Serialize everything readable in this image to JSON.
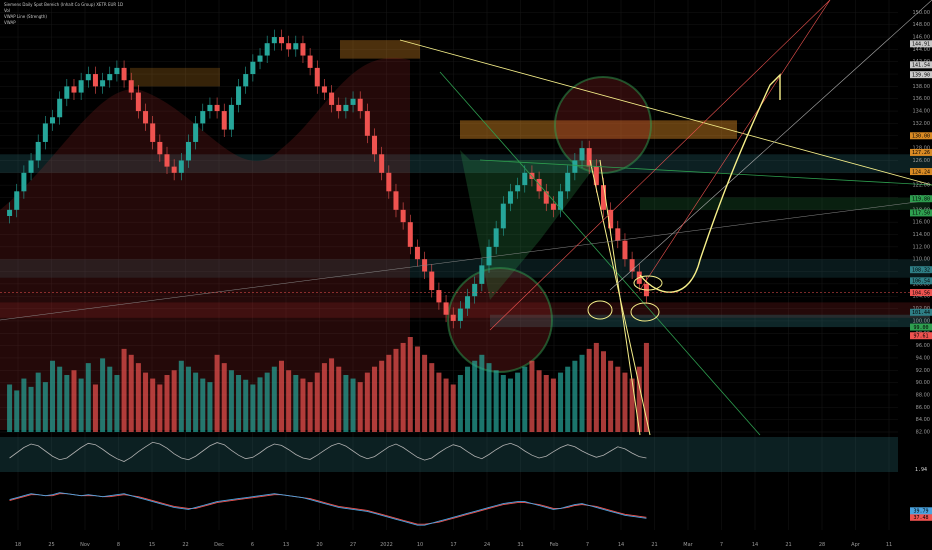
{
  "header": {
    "symbol_line": "Siemens Daily Spot Bereich (Inhalt Co Group)  XETR  EUR  1D",
    "indicator_lines": [
      "Vol",
      "VWAP Line (Strength)",
      "VWAP"
    ]
  },
  "colors": {
    "up": "#26a69a",
    "down": "#ef5350",
    "grid": "#161616",
    "yellow_line": "#f7f08a",
    "zone_orange": "#d98a24",
    "zone_teal": "#2f7f86",
    "zone_green": "#2e9e4f",
    "zone_red": "#b22b2b"
  },
  "chart_data": {
    "type": "candlestick",
    "title": "",
    "xlabel": "",
    "ylabel": "",
    "ylim": [
      82,
      152
    ],
    "x_tick_labels": [
      "18",
      "25",
      "Nov",
      "8",
      "15",
      "22",
      "Dec",
      "6",
      "13",
      "20",
      "27",
      "2022",
      "10",
      "17",
      "24",
      "31",
      "Feb",
      "7",
      "14",
      "21",
      "Mar",
      "7",
      "14",
      "21",
      "28",
      "Apr",
      "11"
    ],
    "y_tick_labels": [
      "150.00",
      "148.00",
      "146.00",
      "144.00",
      "142.00",
      "140.00",
      "138.00",
      "136.00",
      "134.00",
      "132.00",
      "130.00",
      "128.00",
      "126.00",
      "124.00",
      "122.00",
      "120.00",
      "118.00",
      "116.00",
      "114.00",
      "112.00",
      "110.00",
      "108.00",
      "106.00",
      "104.00",
      "102.00",
      "100.00",
      "98.00",
      "96.00",
      "94.00",
      "92.00",
      "90.00",
      "88.00",
      "86.00",
      "84.00",
      "82.00"
    ],
    "price_tags": [
      {
        "label": "144.91",
        "value": 144.9,
        "color": "#c8c8c8"
      },
      {
        "label": "141.54",
        "value": 141.5,
        "color": "#c8c8c8"
      },
      {
        "label": "139.90",
        "value": 139.9,
        "color": "#c8c8c8"
      },
      {
        "label": "130.00",
        "value": 130.0,
        "color": "#d98a24"
      },
      {
        "label": "127.26",
        "value": 127.3,
        "color": "#d98a24"
      },
      {
        "label": "124.24",
        "value": 124.2,
        "color": "#d98a24"
      },
      {
        "label": "119.80",
        "value": 119.8,
        "color": "#2e9e4f"
      },
      {
        "label": "117.50",
        "value": 117.5,
        "color": "#2e9e4f"
      },
      {
        "label": "108.32",
        "value": 108.3,
        "color": "#2f7f86"
      },
      {
        "label": "106.54",
        "value": 106.5,
        "color": "#2f7f86"
      },
      {
        "label": "104.56",
        "value": 104.6,
        "color": "#ef5350"
      },
      {
        "label": "101.44",
        "value": 101.4,
        "color": "#2f7f86"
      },
      {
        "label": "99.00",
        "value": 99.0,
        "color": "#2e9e4f"
      },
      {
        "label": "97.61",
        "value": 97.6,
        "color": "#ef5350"
      }
    ],
    "last_price": {
      "label": "104.56",
      "value": 104.6
    },
    "series": [
      {
        "name": "Siemens",
        "kind": "close",
        "values": [
          118,
          121,
          124,
          126,
          129,
          132,
          133,
          136,
          138,
          137,
          139,
          140,
          138,
          139,
          140,
          141,
          139,
          137,
          134,
          132,
          129,
          127,
          125,
          124,
          126,
          129,
          132,
          134,
          135,
          134,
          131,
          135,
          138,
          140,
          142,
          143,
          145,
          146,
          145,
          144,
          145,
          143,
          141,
          138,
          137,
          135,
          134,
          135,
          136,
          134,
          130,
          127,
          124,
          121,
          118,
          116,
          112,
          110,
          108,
          105,
          103,
          101,
          100,
          102,
          104,
          106,
          109,
          112,
          115,
          119,
          121,
          122,
          124,
          123,
          121,
          119,
          118,
          121,
          124,
          126,
          128,
          125,
          122,
          118,
          115,
          113,
          110,
          108,
          106,
          104
        ]
      }
    ],
    "volume": [
      40,
      35,
      45,
      38,
      50,
      42,
      60,
      55,
      48,
      52,
      45,
      58,
      40,
      62,
      55,
      48,
      70,
      65,
      58,
      50,
      45,
      40,
      48,
      52,
      60,
      55,
      50,
      45,
      42,
      65,
      58,
      52,
      48,
      44,
      40,
      46,
      50,
      55,
      60,
      52,
      48,
      45,
      42,
      50,
      58,
      62,
      55,
      48,
      45,
      42,
      50,
      55,
      60,
      65,
      70,
      75,
      80,
      72,
      65,
      58,
      50,
      45,
      40,
      48,
      55,
      60,
      65,
      58,
      52,
      48,
      45,
      50,
      55,
      60,
      52,
      48,
      45,
      50,
      55,
      60,
      65,
      70,
      75,
      68,
      60,
      55,
      50,
      45,
      55,
      75
    ],
    "oscillator": [
      40,
      55,
      70,
      80,
      75,
      60,
      45,
      35,
      40,
      55,
      70,
      82,
      78,
      65,
      50,
      38,
      30,
      42,
      58,
      72,
      85,
      80,
      68,
      52,
      40,
      35,
      45,
      60,
      75,
      84,
      78,
      62,
      48,
      38,
      42,
      55,
      70,
      80,
      76,
      64,
      50,
      40,
      36,
      48,
      62,
      75,
      82,
      74,
      60,
      46,
      38,
      44,
      58,
      72,
      80,
      70,
      56,
      42,
      34,
      40,
      55,
      68,
      78,
      72,
      58,
      45,
      38,
      50,
      64,
      76,
      82,
      74,
      60,
      48,
      40,
      45,
      58,
      70,
      78,
      72,
      60,
      50,
      42,
      48,
      60,
      72,
      66,
      54,
      44,
      40
    ],
    "oscillator_label": "1.94",
    "rsi": {
      "k": [
        56,
        58,
        60,
        62,
        61,
        60,
        61,
        63,
        62,
        61,
        60,
        61,
        60,
        59,
        60,
        61,
        62,
        60,
        58,
        56,
        54,
        52,
        50,
        48,
        47,
        46,
        48,
        50,
        52,
        54,
        55,
        56,
        57,
        58,
        59,
        60,
        61,
        62,
        61,
        60,
        59,
        58,
        56,
        54,
        52,
        50,
        48,
        47,
        46,
        45,
        44,
        42,
        40,
        38,
        36,
        34,
        32,
        30,
        30,
        32,
        34,
        36,
        38,
        40,
        42,
        44,
        46,
        48,
        50,
        52,
        53,
        54,
        54,
        52,
        50,
        48,
        46,
        47,
        49,
        51,
        52,
        50,
        48,
        46,
        44,
        42,
        40,
        39,
        38,
        37
      ],
      "d": [
        55,
        57,
        59,
        61,
        61,
        60,
        60,
        62,
        62,
        61,
        60,
        60,
        60,
        59,
        59,
        60,
        61,
        60,
        59,
        57,
        55,
        53,
        51,
        49,
        48,
        47,
        47,
        49,
        51,
        53,
        54,
        55,
        56,
        57,
        58,
        59,
        60,
        61,
        61,
        60,
        59,
        58,
        57,
        55,
        53,
        51,
        49,
        48,
        47,
        46,
        45,
        43,
        41,
        39,
        37,
        35,
        33,
        31,
        31,
        32,
        33,
        35,
        37,
        39,
        41,
        43,
        45,
        47,
        49,
        51,
        52,
        53,
        53,
        52,
        51,
        49,
        47,
        47,
        48,
        50,
        51,
        50,
        49,
        47,
        45,
        43,
        41,
        40,
        39,
        38
      ],
      "label_k": "39.79",
      "label_d": "37.48"
    }
  }
}
